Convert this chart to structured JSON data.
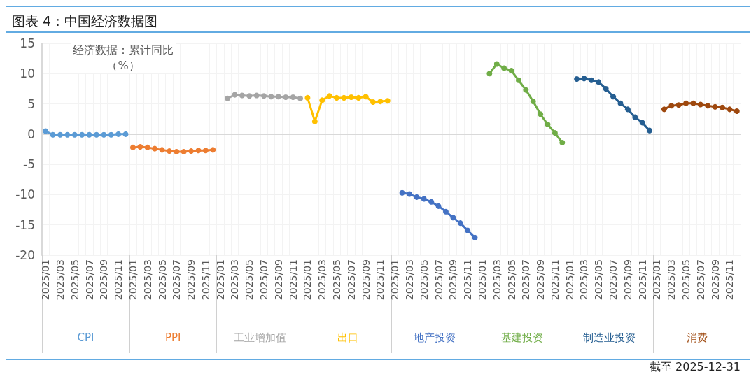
{
  "chart_data": {
    "type": "line",
    "title": "图表 4：中国经济数据图",
    "ylabel": "经济数据：累计同比（%）",
    "annotations": [
      "截至 2025-12-31"
    ],
    "categories": [
      "2025/01",
      null,
      "2025/03",
      null,
      "2025/05",
      null,
      "2025/07",
      null,
      "2025/09",
      null,
      "2025/11",
      null,
      "2025/01",
      null,
      "2025/03",
      null,
      "2025/05",
      null,
      "2025/07",
      null,
      "2025/09",
      null,
      "2025/11",
      null,
      "2025/01",
      null,
      "2025/03",
      null,
      "2025/05",
      null,
      "2025/07",
      null,
      "2025/09",
      null,
      "2025/11",
      null,
      "2025/01",
      null,
      "2025/03",
      null,
      "2025/05",
      null,
      "2025/07",
      null,
      "2025/09",
      null,
      "2025/11",
      null,
      "2025/01",
      null,
      "2025/03",
      null,
      "2025/05",
      null,
      "2025/07",
      null,
      "2025/09",
      null,
      "2025/11",
      null,
      "2025/01",
      null,
      "2025/03",
      null,
      "2025/05",
      null,
      "2025/07",
      null,
      "2025/09",
      null,
      "2025/11",
      null,
      "2025/01",
      null,
      "2025/03",
      null,
      "2025/05",
      null,
      "2025/07",
      null,
      "2025/09",
      null,
      "2025/11",
      null,
      "2025/01",
      null,
      "2025/03",
      null,
      "2025/05",
      null,
      "2025/07",
      null,
      "2025/09",
      null,
      "2025/11",
      null
    ],
    "series": [
      {
        "name": "CPI",
        "color": "#5b9bd5",
        "values": [
          0.5,
          -0.1,
          -0.1,
          -0.1,
          -0.1,
          -0.1,
          -0.1,
          -0.1,
          -0.1,
          -0.1,
          0.0,
          0.0,
          null,
          null,
          null,
          null,
          null,
          null,
          null,
          null,
          null,
          null,
          null,
          null,
          null,
          null,
          null,
          null,
          null,
          null,
          null,
          null,
          null,
          null,
          null,
          null,
          null,
          null,
          null,
          null,
          null,
          null,
          null,
          null,
          null,
          null,
          null,
          null,
          null,
          null,
          null,
          null,
          null,
          null,
          null,
          null,
          null,
          null,
          null,
          null,
          null,
          null,
          null,
          null,
          null,
          null,
          null,
          null,
          null,
          null,
          null,
          null,
          null,
          null,
          null,
          null,
          null,
          null,
          null,
          null,
          null,
          null,
          null,
          null,
          null,
          null,
          null,
          null,
          null,
          null,
          null,
          null,
          null,
          null,
          null,
          null
        ]
      },
      {
        "name": "PPI",
        "color": "#ed7d31",
        "values": [
          null,
          null,
          null,
          null,
          null,
          null,
          null,
          null,
          null,
          null,
          null,
          null,
          -2.2,
          -2.1,
          -2.2,
          -2.4,
          -2.6,
          -2.8,
          -2.9,
          -2.9,
          -2.8,
          -2.7,
          -2.7,
          -2.6,
          null,
          null,
          null,
          null,
          null,
          null,
          null,
          null,
          null,
          null,
          null,
          null,
          null,
          null,
          null,
          null,
          null,
          null,
          null,
          null,
          null,
          null,
          null,
          null,
          null,
          null,
          null,
          null,
          null,
          null,
          null,
          null,
          null,
          null,
          null,
          null,
          null,
          null,
          null,
          null,
          null,
          null,
          null,
          null,
          null,
          null,
          null,
          null,
          null,
          null,
          null,
          null,
          null,
          null,
          null,
          null,
          null,
          null,
          null,
          null,
          null,
          null,
          null,
          null,
          null,
          null,
          null,
          null,
          null,
          null,
          null,
          null
        ]
      },
      {
        "name": "工业增加值",
        "color": "#a5a5a5",
        "values": [
          null,
          null,
          null,
          null,
          null,
          null,
          null,
          null,
          null,
          null,
          null,
          null,
          null,
          null,
          null,
          null,
          null,
          null,
          null,
          null,
          null,
          null,
          null,
          null,
          null,
          5.9,
          6.5,
          6.4,
          6.3,
          6.4,
          6.3,
          6.2,
          6.2,
          6.1,
          6.1,
          5.9,
          null,
          null,
          null,
          null,
          null,
          null,
          null,
          null,
          null,
          null,
          null,
          null,
          null,
          null,
          null,
          null,
          null,
          null,
          null,
          null,
          null,
          null,
          null,
          null,
          null,
          null,
          null,
          null,
          null,
          null,
          null,
          null,
          null,
          null,
          null,
          null,
          null,
          null,
          null,
          null,
          null,
          null,
          null,
          null,
          null,
          null,
          null,
          null,
          null,
          null,
          null,
          null,
          null,
          null,
          null,
          null,
          null,
          null,
          null,
          null
        ]
      },
      {
        "name": "出口",
        "color": "#ffc000",
        "values": [
          null,
          null,
          null,
          null,
          null,
          null,
          null,
          null,
          null,
          null,
          null,
          null,
          null,
          null,
          null,
          null,
          null,
          null,
          null,
          null,
          null,
          null,
          null,
          null,
          null,
          null,
          null,
          null,
          null,
          null,
          null,
          null,
          null,
          null,
          null,
          null,
          6.0,
          2.1,
          5.6,
          6.3,
          6.0,
          6.0,
          6.1,
          6.0,
          6.2,
          5.3,
          5.4,
          5.5,
          null,
          null,
          null,
          null,
          null,
          null,
          null,
          null,
          null,
          null,
          null,
          null,
          null,
          null,
          null,
          null,
          null,
          null,
          null,
          null,
          null,
          null,
          null,
          null,
          null,
          null,
          null,
          null,
          null,
          null,
          null,
          null,
          null,
          null,
          null,
          null,
          null,
          null,
          null,
          null,
          null,
          null,
          null,
          null,
          null,
          null,
          null,
          null
        ]
      },
      {
        "name": "地产投资",
        "color": "#4472c4",
        "values": [
          null,
          null,
          null,
          null,
          null,
          null,
          null,
          null,
          null,
          null,
          null,
          null,
          null,
          null,
          null,
          null,
          null,
          null,
          null,
          null,
          null,
          null,
          null,
          null,
          null,
          null,
          null,
          null,
          null,
          null,
          null,
          null,
          null,
          null,
          null,
          null,
          null,
          null,
          null,
          null,
          null,
          null,
          null,
          null,
          null,
          null,
          null,
          null,
          null,
          -9.7,
          -9.9,
          -10.4,
          -10.7,
          -11.2,
          -11.9,
          -12.8,
          -13.8,
          -14.7,
          -15.9,
          -17.1,
          null,
          null,
          null,
          null,
          null,
          null,
          null,
          null,
          null,
          null,
          null,
          null,
          null,
          null,
          null,
          null,
          null,
          null,
          null,
          null,
          null,
          null,
          null,
          null,
          null,
          null,
          null,
          null,
          null,
          null,
          null,
          null,
          null,
          null,
          null,
          null
        ]
      },
      {
        "name": "基建投资",
        "color": "#70ad47",
        "values": [
          null,
          null,
          null,
          null,
          null,
          null,
          null,
          null,
          null,
          null,
          null,
          null,
          null,
          null,
          null,
          null,
          null,
          null,
          null,
          null,
          null,
          null,
          null,
          null,
          null,
          null,
          null,
          null,
          null,
          null,
          null,
          null,
          null,
          null,
          null,
          null,
          null,
          null,
          null,
          null,
          null,
          null,
          null,
          null,
          null,
          null,
          null,
          null,
          null,
          null,
          null,
          null,
          null,
          null,
          null,
          null,
          null,
          null,
          null,
          null,
          null,
          10.0,
          11.6,
          10.9,
          10.5,
          8.9,
          7.3,
          5.4,
          3.3,
          1.6,
          0.2,
          -1.4,
          null,
          null,
          null,
          null,
          null,
          null,
          null,
          null,
          null,
          null,
          null,
          null,
          null,
          null,
          null,
          null,
          null,
          null,
          null,
          null,
          null,
          null,
          null,
          null
        ]
      },
      {
        "name": "制造业投资",
        "color": "#255e91",
        "values": [
          null,
          null,
          null,
          null,
          null,
          null,
          null,
          null,
          null,
          null,
          null,
          null,
          null,
          null,
          null,
          null,
          null,
          null,
          null,
          null,
          null,
          null,
          null,
          null,
          null,
          null,
          null,
          null,
          null,
          null,
          null,
          null,
          null,
          null,
          null,
          null,
          null,
          null,
          null,
          null,
          null,
          null,
          null,
          null,
          null,
          null,
          null,
          null,
          null,
          null,
          null,
          null,
          null,
          null,
          null,
          null,
          null,
          null,
          null,
          null,
          null,
          null,
          null,
          null,
          null,
          null,
          null,
          null,
          null,
          null,
          null,
          null,
          null,
          9.1,
          9.2,
          8.9,
          8.6,
          7.5,
          6.2,
          5.1,
          4.1,
          2.8,
          1.9,
          0.6,
          null,
          null,
          null,
          null,
          null,
          null,
          null,
          null,
          null,
          null,
          null,
          null
        ]
      },
      {
        "name": "消费",
        "color": "#9e480e",
        "values": [
          null,
          null,
          null,
          null,
          null,
          null,
          null,
          null,
          null,
          null,
          null,
          null,
          null,
          null,
          null,
          null,
          null,
          null,
          null,
          null,
          null,
          null,
          null,
          null,
          null,
          null,
          null,
          null,
          null,
          null,
          null,
          null,
          null,
          null,
          null,
          null,
          null,
          null,
          null,
          null,
          null,
          null,
          null,
          null,
          null,
          null,
          null,
          null,
          null,
          null,
          null,
          null,
          null,
          null,
          null,
          null,
          null,
          null,
          null,
          null,
          null,
          null,
          null,
          null,
          null,
          null,
          null,
          null,
          null,
          null,
          null,
          null,
          null,
          null,
          null,
          null,
          null,
          null,
          null,
          null,
          null,
          null,
          null,
          null,
          null,
          4.1,
          4.7,
          4.8,
          5.1,
          5.1,
          4.9,
          4.7,
          4.5,
          4.4,
          4.1,
          3.8
        ]
      }
    ],
    "ylim": [
      -20,
      15
    ],
    "yticks": [
      -20,
      -15,
      -10,
      -5,
      0,
      5,
      10,
      15
    ],
    "grid": true,
    "legend": false,
    "marker": "circle",
    "line_style": "solid"
  }
}
